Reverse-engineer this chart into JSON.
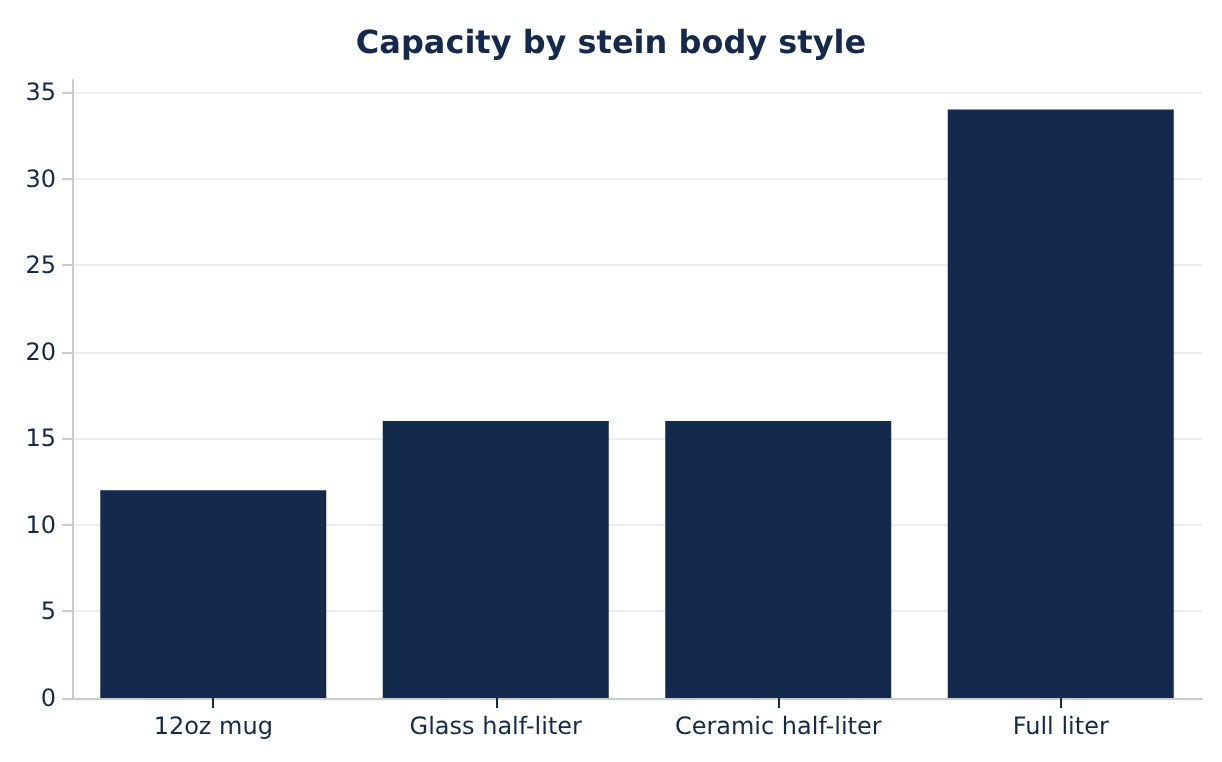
{
  "chart_data": {
    "type": "bar",
    "title": "Capacity by stein body style",
    "categories": [
      "12oz mug",
      "Glass half-liter",
      "Ceramic half-liter",
      "Full liter"
    ],
    "values": [
      12,
      16,
      16,
      34
    ],
    "color": "#142a4c",
    "ylim": [
      0,
      35.7
    ],
    "yticks": [
      0,
      5,
      10,
      15,
      20,
      25,
      30,
      35
    ],
    "grid": "y"
  }
}
